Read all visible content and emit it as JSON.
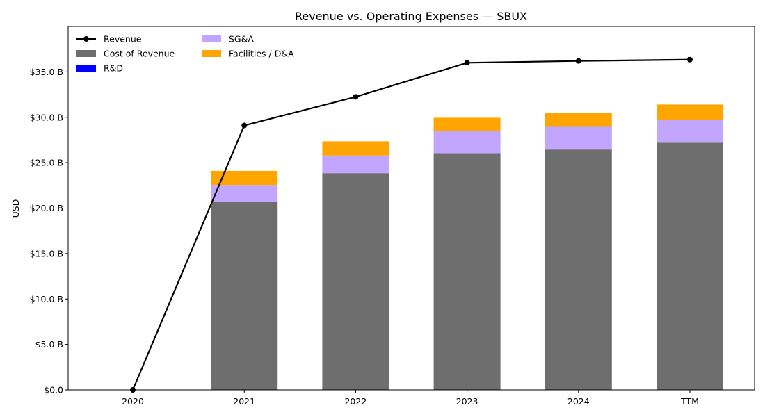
{
  "chart_data": {
    "type": "bar",
    "title": "Revenue vs. Operating Expenses — SBUX",
    "xlabel": "",
    "ylabel": "USD",
    "categories": [
      "2020",
      "2021",
      "2022",
      "2023",
      "2024",
      "TTM"
    ],
    "ylim": [
      0,
      40
    ],
    "yticks": [
      0,
      5,
      10,
      15,
      20,
      25,
      30,
      35
    ],
    "ytick_labels": [
      "$0.0",
      "$5.0 B",
      "$10.0 B",
      "$15.0 B",
      "$20.0 B",
      "$25.0 B",
      "$30.0 B",
      "$35.0 B"
    ],
    "value_unit": "billion USD",
    "stacked_series": [
      {
        "name": "Cost of Revenue",
        "color": "#6e6e6e",
        "values": [
          0,
          20.65,
          23.85,
          26.05,
          26.45,
          27.2
        ]
      },
      {
        "name": "R&D",
        "color": "#0000ff",
        "values": [
          0,
          0,
          0,
          0,
          0,
          0
        ]
      },
      {
        "name": "SG&A",
        "color": "#c2a5ff",
        "values": [
          0,
          1.9,
          1.95,
          2.45,
          2.5,
          2.55
        ]
      },
      {
        "name": "Facilities / D&A",
        "color": "#ffa500",
        "values": [
          0,
          1.55,
          1.55,
          1.45,
          1.55,
          1.65
        ]
      }
    ],
    "line_series": [
      {
        "name": "Revenue",
        "color": "#000000",
        "marker": "circle",
        "values": [
          0,
          29.1,
          32.25,
          36.0,
          36.2,
          36.35
        ]
      }
    ],
    "legend": {
      "placement": "top-left",
      "columns": 2,
      "entries": [
        "Revenue",
        "Cost of Revenue",
        "R&D",
        "SG&A",
        "Facilities / D&A"
      ]
    },
    "grid": false
  }
}
